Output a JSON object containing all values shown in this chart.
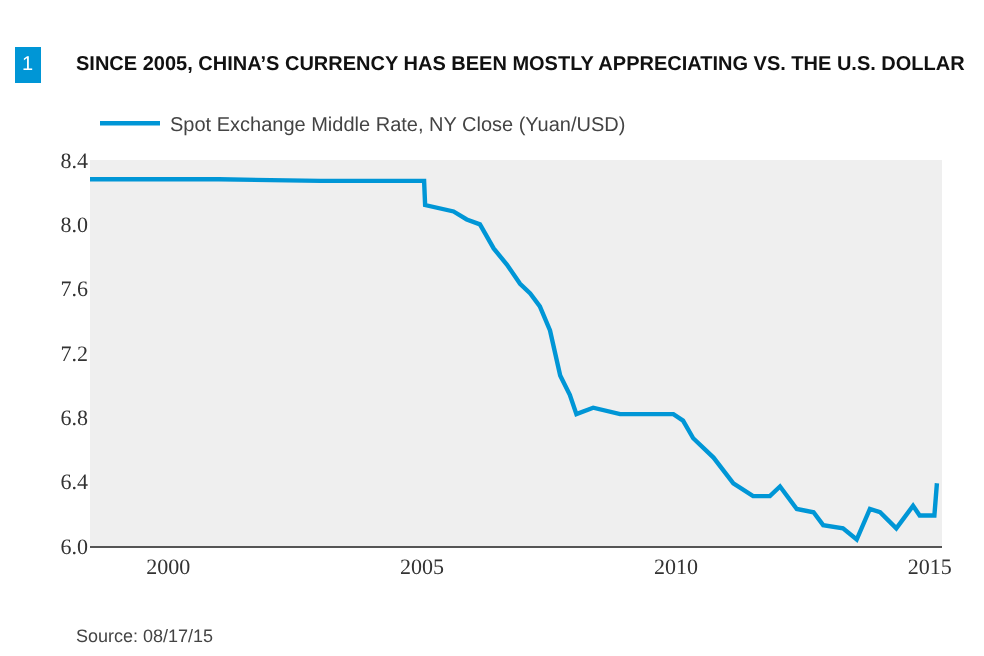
{
  "chart_data": {
    "type": "line",
    "title": "SINCE 2005, CHINA’S CURRENCY HAS BEEN MOSTLY APPRECIATING VS. THE U.S. DOLLAR",
    "annotations": [
      "1",
      "Source: 08/17/15"
    ],
    "x": [
      1998.46,
      1999.5,
      2001.0,
      2003.0,
      2005.04,
      2005.06,
      2005.62,
      2005.88,
      2006.14,
      2006.41,
      2006.67,
      2006.93,
      2007.13,
      2007.32,
      2007.52,
      2007.72,
      2007.91,
      2008.04,
      2008.37,
      2008.9,
      2009.95,
      2010.14,
      2010.34,
      2010.74,
      2011.13,
      2011.52,
      2011.85,
      2012.05,
      2012.38,
      2012.71,
      2012.9,
      2013.29,
      2013.56,
      2013.82,
      2014.02,
      2014.34,
      2014.67,
      2014.8,
      2015.09,
      2015.14
    ],
    "series": [
      {
        "name": "Spot Exchange Middle Rate, NY Close (Yuan/USD)",
        "color": "#0096d6",
        "values": [
          8.28,
          8.28,
          8.28,
          8.27,
          8.27,
          8.12,
          8.08,
          8.03,
          8.0,
          7.85,
          7.75,
          7.63,
          7.57,
          7.49,
          7.34,
          7.06,
          6.94,
          6.82,
          6.86,
          6.82,
          6.82,
          6.78,
          6.67,
          6.55,
          6.39,
          6.31,
          6.31,
          6.37,
          6.23,
          6.21,
          6.13,
          6.11,
          6.04,
          6.23,
          6.21,
          6.11,
          6.25,
          6.19,
          6.19,
          6.39
        ]
      }
    ],
    "xlim": [
      1998.46,
      2015.24
    ],
    "xticks": [
      2000,
      2005,
      2010,
      2015
    ],
    "ylim": [
      6.0,
      8.4
    ],
    "yticks": [
      {
        "value": 6.0,
        "label": "6.0"
      },
      {
        "value": 6.4,
        "label": "6.4"
      },
      {
        "value": 6.8,
        "label": "6.8"
      },
      {
        "value": 7.2,
        "label": "7.2"
      },
      {
        "value": 7.6,
        "label": "7.6"
      },
      {
        "value": 8.0,
        "label": "8.0"
      },
      {
        "value": 8.4,
        "label": "8.4"
      }
    ],
    "grid": false,
    "legend": "top left"
  }
}
